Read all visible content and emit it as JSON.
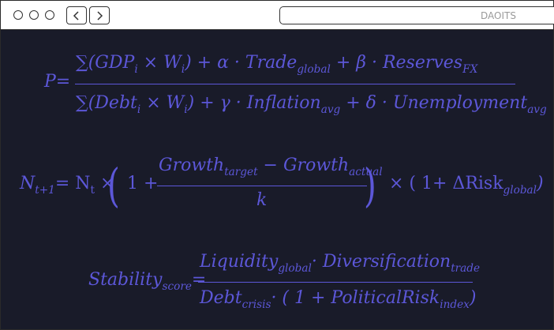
{
  "window": {
    "address_text": "DAOITS"
  },
  "formula1": {
    "lhs": "P=",
    "num": {
      "sum1": "∑(GDP",
      "sub_i1": "i",
      "times1": " × W",
      "sub_i2": "i",
      "rest1": ") + α · Trade",
      "sub_global": "global",
      "rest2": " + β · Reserves",
      "sub_fx": "FX"
    },
    "den": {
      "sum2": "∑(Debt",
      "sub_i3": "i",
      "times2": " × W",
      "sub_i4": "i",
      "rest3": ") + γ · Inflation",
      "sub_avg1": "avg",
      "rest4": " + δ · Unemployment",
      "sub_avg2": "avg"
    }
  },
  "formula2": {
    "lhs_n": "N",
    "lhs_sub": "t+1",
    "eq": "= N",
    "n_sub": "t",
    "times": " ×",
    "one_plus": "1 +",
    "num_growth1": "Growth",
    "num_sub_target": "target",
    "num_minus": " − Growth",
    "num_sub_actual": "actual",
    "den_k": "k",
    "right_part": "× ( 1+ ΔRisk",
    "right_sub": "global",
    "right_close": ")"
  },
  "formula3": {
    "lhs": "Stability",
    "lhs_sub": "score",
    "eq": "=",
    "num_liq": "Liquidity",
    "num_sub_global": "global",
    "num_div": "· Diversification",
    "num_sub_trade": "trade",
    "den_debt": "Debt",
    "den_sub_crisis": "crisis",
    "den_rest": "· ( 1 + PoliticalRisk",
    "den_sub_index": "index",
    "den_close": ")"
  }
}
